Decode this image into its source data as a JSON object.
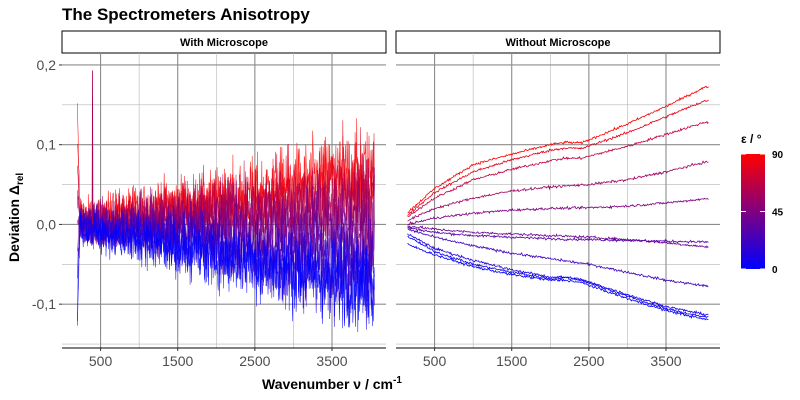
{
  "chart_data": {
    "type": "line",
    "title": "The Spectrometers Anisotropy",
    "xlabel": "Wavenumber ν / cm",
    "xlabel_superscript": "-1",
    "ylabel": "Deviation Δ",
    "ylabel_subscript": "rel",
    "x_ticks": [
      500,
      1500,
      2500,
      3500
    ],
    "x_tick_labels": [
      "500",
      "1500",
      "2500",
      "3500"
    ],
    "xlim": [
      0,
      4200
    ],
    "y_ticks": [
      -0.1,
      0.0,
      0.1,
      0.2
    ],
    "y_tick_labels": [
      "-0,1",
      "0,0",
      "0,1",
      "0,2"
    ],
    "ylim": [
      -0.155,
      0.215
    ],
    "grid": true,
    "color_scale": {
      "title": "ε / °",
      "min": 0,
      "max": 90,
      "ticks": [
        0,
        45,
        90
      ],
      "low_color": "#0000FF",
      "high_color": "#FF0000"
    },
    "panels": [
      {
        "strip": "With Microscope",
        "description_data": {
          "x_range": [
            200,
            4050
          ],
          "noise_amplitude": "high",
          "series": [
            {
              "epsilon": 90,
              "x": [
                200,
                500,
                1000,
                1500,
                2000,
                2500,
                3000,
                3500,
                4000
              ],
              "y": [
                0.01,
                0.01,
                0.02,
                0.025,
                0.03,
                0.04,
                0.05,
                0.06,
                0.065
              ]
            },
            {
              "epsilon": 80,
              "x": [
                200,
                500,
                1000,
                1500,
                2000,
                2500,
                3000,
                3500,
                4000
              ],
              "y": [
                0.01,
                0.01,
                0.015,
                0.02,
                0.025,
                0.03,
                0.04,
                0.05,
                0.055
              ]
            },
            {
              "epsilon": 68,
              "x": [
                200,
                500,
                1000,
                1500,
                2000,
                2500,
                3000,
                3500,
                4000
              ],
              "y": [
                0.005,
                0.005,
                0.01,
                0.015,
                0.02,
                0.02,
                0.025,
                0.03,
                0.035
              ]
            },
            {
              "epsilon": 56,
              "x": [
                200,
                500,
                1000,
                1500,
                2000,
                2500,
                3000,
                3500,
                4000
              ],
              "y": [
                0.0,
                0.0,
                0.005,
                0.005,
                0.01,
                0.01,
                0.01,
                0.015,
                0.015
              ]
            },
            {
              "epsilon": 45,
              "x": [
                200,
                500,
                1000,
                1500,
                2000,
                2500,
                3000,
                3500,
                4000
              ],
              "y": [
                0.0,
                0.0,
                0.0,
                0.0,
                0.0,
                0.0,
                0.0,
                0.0,
                0.0
              ]
            },
            {
              "epsilon": 34,
              "x": [
                200,
                500,
                1000,
                1500,
                2000,
                2500,
                3000,
                3500,
                4000
              ],
              "y": [
                0.0,
                -0.005,
                -0.005,
                -0.01,
                -0.015,
                -0.02,
                -0.025,
                -0.03,
                -0.035
              ]
            },
            {
              "epsilon": 22,
              "x": [
                200,
                500,
                1000,
                1500,
                2000,
                2500,
                3000,
                3500,
                4000
              ],
              "y": [
                0.0,
                -0.005,
                -0.01,
                -0.015,
                -0.025,
                -0.035,
                -0.045,
                -0.05,
                -0.055
              ]
            },
            {
              "epsilon": 10,
              "x": [
                200,
                500,
                1000,
                1500,
                2000,
                2500,
                3000,
                3500,
                4000
              ],
              "y": [
                0.0,
                -0.01,
                -0.015,
                -0.025,
                -0.035,
                -0.045,
                -0.055,
                -0.065,
                -0.07
              ]
            },
            {
              "epsilon": 0,
              "x": [
                200,
                500,
                1000,
                1500,
                2000,
                2500,
                3000,
                3500,
                4000
              ],
              "y": [
                0.0,
                -0.01,
                -0.02,
                -0.03,
                -0.04,
                -0.05,
                -0.06,
                -0.07,
                -0.075
              ]
            }
          ]
        }
      },
      {
        "strip": "Without Microscope",
        "description_data": {
          "x_range": [
            150,
            4050
          ],
          "noise_amplitude": "low",
          "series": [
            {
              "epsilon": 90,
              "x": [
                150,
                500,
                1000,
                1500,
                2000,
                2200,
                2400,
                3000,
                3500,
                4000
              ],
              "y": [
                0.015,
                0.045,
                0.075,
                0.088,
                0.1,
                0.103,
                0.102,
                0.126,
                0.148,
                0.172
              ]
            },
            {
              "epsilon": 80,
              "x": [
                150,
                500,
                1000,
                1500,
                2000,
                2200,
                2400,
                3000,
                3500,
                4000
              ],
              "y": [
                0.012,
                0.04,
                0.066,
                0.081,
                0.093,
                0.096,
                0.095,
                0.115,
                0.135,
                0.155
              ]
            },
            {
              "epsilon": 68,
              "x": [
                150,
                500,
                1000,
                1500,
                2000,
                2200,
                2400,
                3000,
                3500,
                4000
              ],
              "y": [
                0.01,
                0.033,
                0.056,
                0.069,
                0.08,
                0.083,
                0.083,
                0.098,
                0.113,
                0.128
              ]
            },
            {
              "epsilon": 56,
              "x": [
                150,
                500,
                1000,
                1500,
                2000,
                2500,
                3000,
                3500,
                4000
              ],
              "y": [
                0.005,
                0.02,
                0.033,
                0.042,
                0.047,
                0.05,
                0.056,
                0.066,
                0.078
              ]
            },
            {
              "epsilon": 45,
              "x": [
                150,
                500,
                1000,
                1500,
                2000,
                2500,
                3000,
                3500,
                4000
              ],
              "y": [
                0.0,
                0.008,
                0.014,
                0.018,
                0.02,
                0.021,
                0.023,
                0.027,
                0.032
              ]
            },
            {
              "epsilon": 38,
              "x": [
                150,
                500,
                1000,
                1500,
                2000,
                2500,
                3000,
                3500,
                4000
              ],
              "y": [
                -0.002,
                -0.006,
                -0.01,
                -0.012,
                -0.014,
                -0.016,
                -0.019,
                -0.023,
                -0.028
              ]
            },
            {
              "epsilon": 30,
              "x": [
                150,
                500,
                1000,
                1500,
                2000,
                2500,
                3000,
                3500,
                4000
              ],
              "y": [
                -0.004,
                -0.01,
                -0.014,
                -0.016,
                -0.018,
                -0.019,
                -0.02,
                -0.021,
                -0.022
              ]
            },
            {
              "epsilon": 22,
              "x": [
                150,
                500,
                1000,
                1500,
                2000,
                2500,
                3000,
                3500,
                4000
              ],
              "y": [
                -0.006,
                -0.016,
                -0.027,
                -0.036,
                -0.043,
                -0.05,
                -0.06,
                -0.07,
                -0.077
              ]
            },
            {
              "epsilon": 10,
              "x": [
                150,
                500,
                1000,
                1500,
                2000,
                2200,
                2400,
                3000,
                3500,
                4000
              ],
              "y": [
                -0.012,
                -0.03,
                -0.045,
                -0.057,
                -0.066,
                -0.066,
                -0.069,
                -0.088,
                -0.103,
                -0.113
              ]
            },
            {
              "epsilon": 5,
              "x": [
                150,
                500,
                1000,
                1500,
                2000,
                2200,
                2400,
                3000,
                3500,
                4000
              ],
              "y": [
                -0.015,
                -0.034,
                -0.05,
                -0.06,
                -0.068,
                -0.067,
                -0.07,
                -0.09,
                -0.106,
                -0.116
              ]
            },
            {
              "epsilon": 0,
              "x": [
                150,
                500,
                1000,
                1500,
                2000,
                2200,
                2400,
                3000,
                3500,
                4000
              ],
              "y": [
                -0.025,
                -0.038,
                -0.053,
                -0.063,
                -0.07,
                -0.07,
                -0.073,
                -0.093,
                -0.108,
                -0.119
              ]
            }
          ]
        }
      }
    ]
  }
}
